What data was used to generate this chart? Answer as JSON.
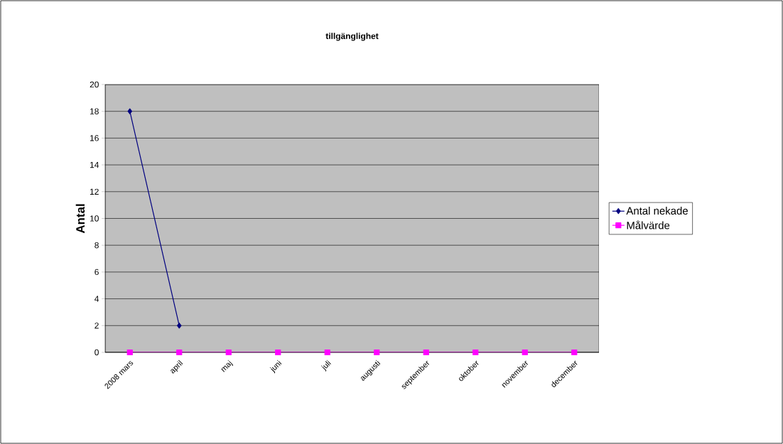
{
  "chart_data": {
    "type": "line",
    "title": "tillgänglighet",
    "ylabel": "Antal",
    "categories": [
      "2008 mars",
      "april",
      "maj",
      "juni",
      "juli",
      "augusti",
      "september",
      "oktober",
      "november",
      "december"
    ],
    "series": [
      {
        "name": "Antal nekade",
        "color": "#000080",
        "marker": "diamond",
        "values": [
          18,
          2,
          null,
          null,
          null,
          null,
          null,
          null,
          null,
          null
        ]
      },
      {
        "name": "Målvärde",
        "color": "#ff00ff",
        "marker": "square",
        "values": [
          0,
          0,
          0,
          0,
          0,
          0,
          0,
          0,
          0,
          0
        ]
      }
    ],
    "ylim": [
      0,
      20
    ],
    "yticks": [
      0,
      2,
      4,
      6,
      8,
      10,
      12,
      14,
      16,
      18,
      20
    ],
    "grid": "y",
    "legend": "right",
    "line_style": "solid"
  }
}
